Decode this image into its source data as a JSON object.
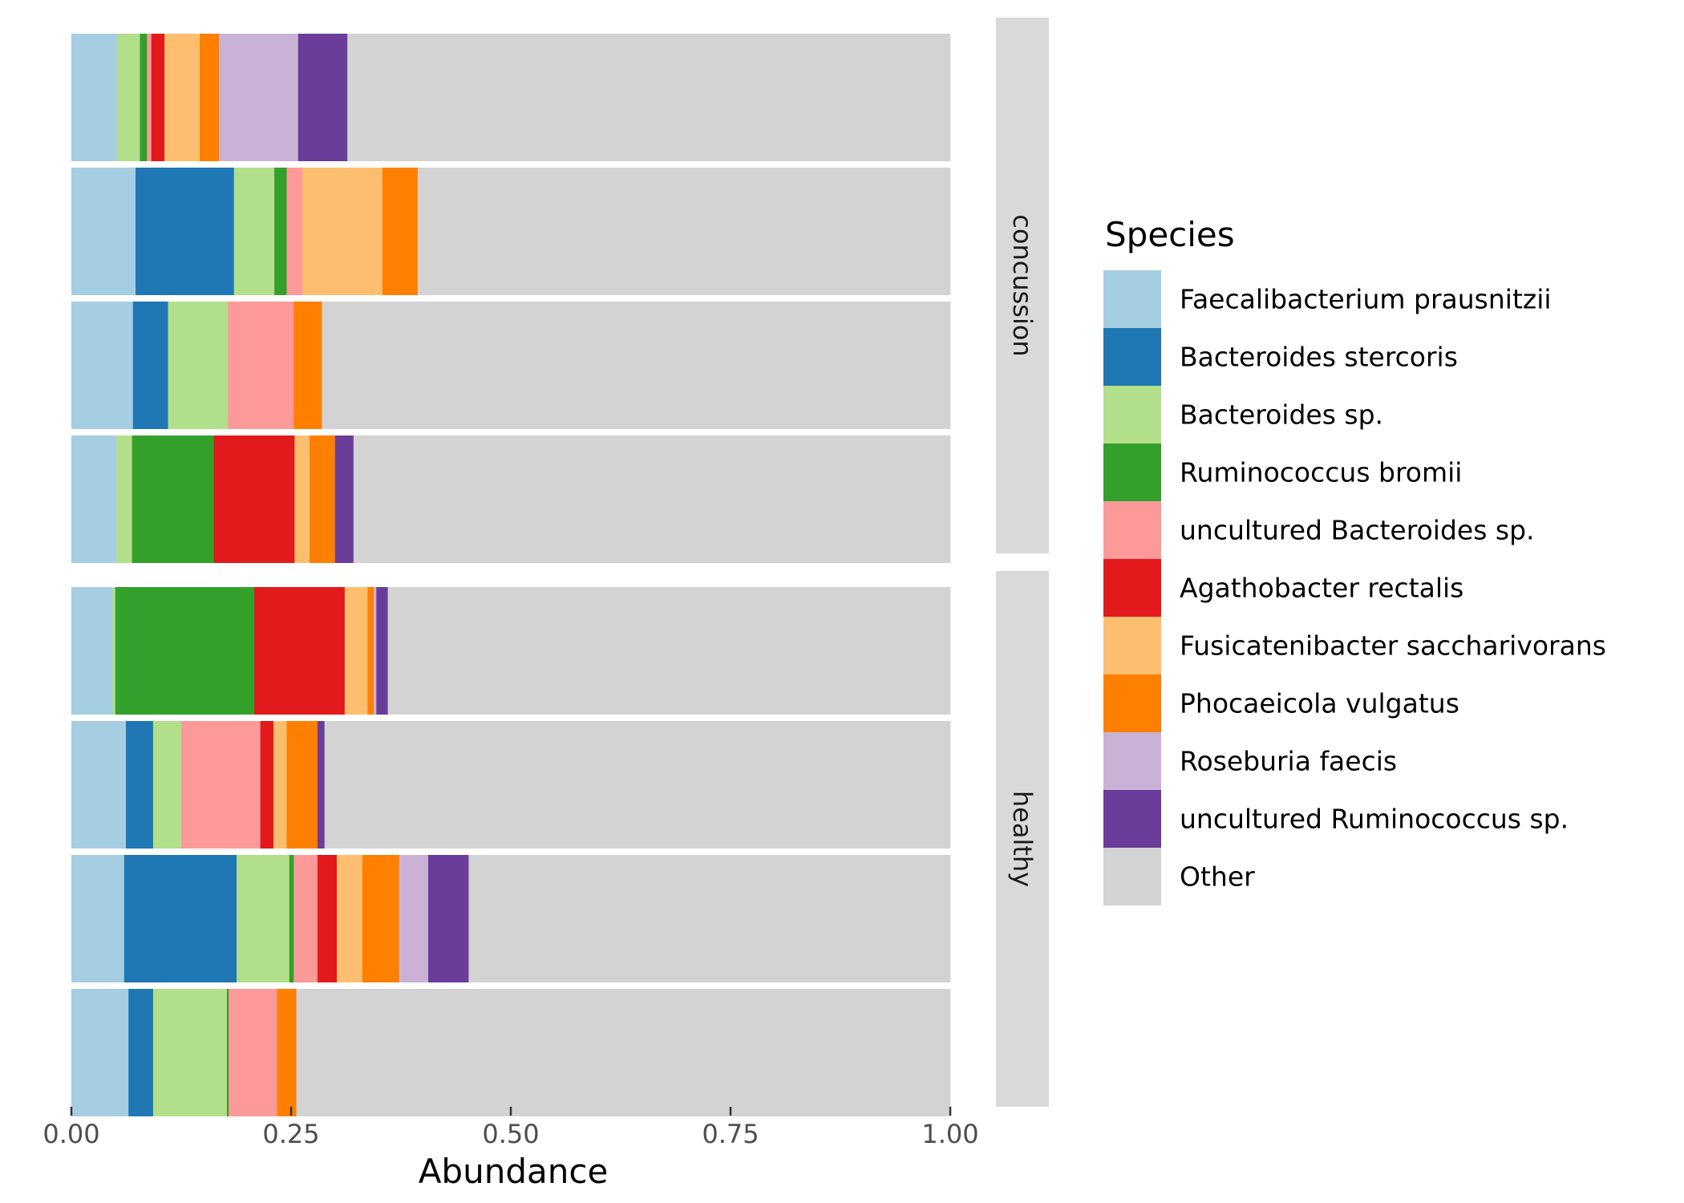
{
  "chart_data": {
    "type": "bar",
    "orientation": "horizontal",
    "stacked": true,
    "xlabel": "Abundance",
    "xlim": [
      0,
      1
    ],
    "x_ticks": [
      "0.00",
      "0.25",
      "0.50",
      "0.75",
      "1.00"
    ],
    "grid": false,
    "legend": {
      "title": "Species",
      "placement": "right",
      "entries": [
        {
          "name": "Faecalibacterium prausnitzii",
          "color": "#A6CEE3"
        },
        {
          "name": "Bacteroides stercoris",
          "color": "#1F78B4"
        },
        {
          "name": "Bacteroides sp.",
          "color": "#B2DF8A"
        },
        {
          "name": "Ruminococcus bromii",
          "color": "#33A02C"
        },
        {
          "name": "uncultured Bacteroides sp.",
          "color": "#FB9A99"
        },
        {
          "name": "Agathobacter rectalis",
          "color": "#E31A1C"
        },
        {
          "name": "Fusicatenibacter saccharivorans",
          "color": "#FDBF6F"
        },
        {
          "name": "Phocaeicola vulgatus",
          "color": "#FF7F00"
        },
        {
          "name": "Roseburia faecis",
          "color": "#CAB2D6"
        },
        {
          "name": "uncultured Ruminococcus sp.",
          "color": "#6A3D9A"
        },
        {
          "name": "Other",
          "color": "#D3D3D3"
        }
      ]
    },
    "facets": [
      {
        "label": "concussion",
        "bars": [
          [
            0.052,
            0.0,
            0.026,
            0.008,
            0.005,
            0.015,
            0.04,
            0.022,
            0.09,
            0.056,
            0.686
          ],
          [
            0.073,
            0.112,
            0.046,
            0.014,
            0.018,
            0.0,
            0.091,
            0.04,
            0.0,
            0.0,
            0.606
          ],
          [
            0.07,
            0.04,
            0.068,
            0.0,
            0.075,
            0.0,
            0.0,
            0.032,
            0.0,
            0.0,
            0.715
          ],
          [
            0.051,
            0.0,
            0.018,
            0.093,
            0.0,
            0.092,
            0.017,
            0.029,
            0.0,
            0.021,
            0.679
          ]
        ]
      },
      {
        "label": "healthy",
        "bars": [
          [
            0.047,
            0.0,
            0.003,
            0.158,
            0.0,
            0.103,
            0.026,
            0.007,
            0.003,
            0.013,
            0.64
          ],
          [
            0.062,
            0.031,
            0.032,
            0.0,
            0.09,
            0.015,
            0.015,
            0.035,
            0.0,
            0.008,
            0.712
          ],
          [
            0.06,
            0.128,
            0.06,
            0.005,
            0.027,
            0.022,
            0.029,
            0.042,
            0.033,
            0.046,
            0.548
          ],
          [
            0.065,
            0.028,
            0.084,
            0.002,
            0.055,
            0.0,
            0.0,
            0.022,
            0.0,
            0.0,
            0.744
          ]
        ]
      }
    ]
  }
}
